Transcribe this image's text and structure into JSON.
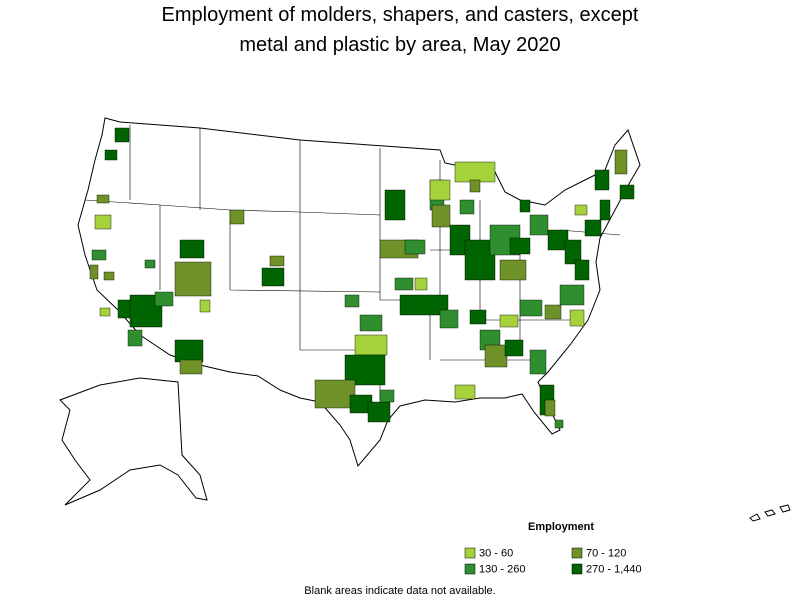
{
  "title": [
    "Employment of molders, shapers, and casters, except",
    "metal and plastic by area, May 2020"
  ],
  "legend": {
    "title": "Employment",
    "entries": [
      {
        "label": "30 - 60",
        "color": "#a5d13b"
      },
      {
        "label": "70 - 120",
        "color": "#6e9128"
      },
      {
        "label": "130 - 260",
        "color": "#2f8f2f"
      },
      {
        "label": "270 - 1,440",
        "color": "#006400"
      }
    ]
  },
  "footnote": "Blank areas indicate data not available."
}
